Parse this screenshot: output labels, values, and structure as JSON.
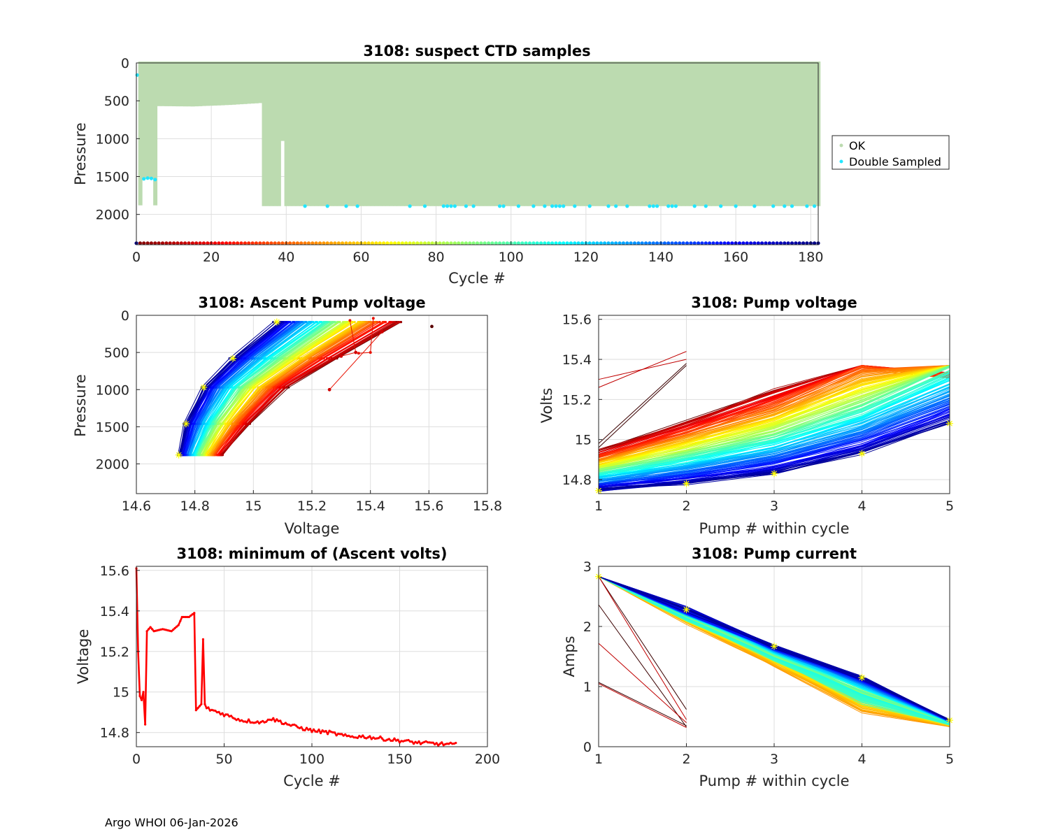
{
  "footer": "Argo WHOI 06-Jan-2026",
  "colors": {
    "ok": "#bcdbb0",
    "double": "#22e6ff",
    "min_line": "#ff0000",
    "marker": "#ffff00"
  },
  "chart_data": [
    {
      "id": "suspect_ctd",
      "type": "scatter",
      "title": "3108: suspect CTD samples",
      "xlabel": "Cycle #",
      "ylabel": "Pressure",
      "xlim": [
        0,
        182
      ],
      "ylim": [
        2400,
        0
      ],
      "xticks": [
        "0",
        "20",
        "40",
        "60",
        "80",
        "100",
        "120",
        "140",
        "160",
        "180"
      ],
      "xtick_values": [
        0,
        20,
        40,
        60,
        80,
        100,
        120,
        140,
        160,
        180
      ],
      "yticks": [
        "0",
        "500",
        "1000",
        "1500",
        "2000"
      ],
      "ytick_values": [
        0,
        500,
        1000,
        1500,
        2000
      ],
      "legend": [
        "OK",
        "Double Sampled"
      ],
      "ok_profile_max_pressure": [
        [
          1,
          1880
        ],
        [
          2,
          1530
        ],
        [
          3,
          1520
        ],
        [
          4,
          1530
        ],
        [
          5,
          1880
        ],
        [
          6,
          570
        ],
        [
          15,
          575
        ],
        [
          25,
          555
        ],
        [
          33,
          530
        ],
        [
          34,
          1890
        ],
        [
          38,
          1890
        ],
        [
          39,
          1030
        ],
        [
          40,
          1890
        ],
        [
          182,
          1890
        ]
      ],
      "double_sampled_points": [
        [
          0.2,
          160
        ],
        [
          2,
          1530
        ],
        [
          3,
          1520
        ],
        [
          4,
          1525
        ],
        [
          5,
          1540
        ],
        [
          45,
          1890
        ],
        [
          51,
          1890
        ],
        [
          56,
          1890
        ],
        [
          59,
          1890
        ],
        [
          73,
          1890
        ],
        [
          77,
          1890
        ],
        [
          82,
          1890
        ],
        [
          83,
          1890
        ],
        [
          84,
          1890
        ],
        [
          85,
          1890
        ],
        [
          88,
          1890
        ],
        [
          90,
          1890
        ],
        [
          97,
          1890
        ],
        [
          98,
          1890
        ],
        [
          102,
          1890
        ],
        [
          106,
          1890
        ],
        [
          109,
          1890
        ],
        [
          111,
          1890
        ],
        [
          112,
          1890
        ],
        [
          113,
          1890
        ],
        [
          114,
          1890
        ],
        [
          117,
          1890
        ],
        [
          121,
          1890
        ],
        [
          126,
          1890
        ],
        [
          128,
          1890
        ],
        [
          131,
          1890
        ],
        [
          137,
          1890
        ],
        [
          138,
          1890
        ],
        [
          139,
          1890
        ],
        [
          142,
          1890
        ],
        [
          143,
          1890
        ],
        [
          144,
          1890
        ],
        [
          149,
          1890
        ],
        [
          152,
          1890
        ],
        [
          156,
          1890
        ],
        [
          160,
          1890
        ],
        [
          165,
          1890
        ],
        [
          170,
          1890
        ],
        [
          173,
          1890
        ],
        [
          175,
          1890
        ],
        [
          179,
          1890
        ],
        [
          181,
          1890
        ]
      ],
      "cycle_color_row_pressure": 2380
    },
    {
      "id": "ascent_pump_voltage",
      "type": "line",
      "title": "3108: Ascent Pump voltage",
      "xlabel": "Voltage",
      "ylabel": "Pressure",
      "xlim": [
        14.6,
        15.8
      ],
      "ylim": [
        2400,
        0
      ],
      "xticks": [
        "14.6",
        "14.8",
        "15",
        "15.2",
        "15.4",
        "15.6",
        "15.8"
      ],
      "xtick_values": [
        14.6,
        14.8,
        15.0,
        15.2,
        15.4,
        15.6,
        15.8
      ],
      "yticks": [
        "0",
        "500",
        "1000",
        "1500",
        "2000"
      ],
      "ytick_values": [
        0,
        500,
        1000,
        1500,
        2000
      ],
      "reference_profile": [
        [
          14.745,
          1880
        ],
        [
          14.77,
          1460
        ],
        [
          14.83,
          970
        ],
        [
          14.93,
          580
        ],
        [
          15.08,
          90
        ]
      ],
      "outliers": [
        [
          15.61,
          150
        ],
        [
          15.44,
          220
        ],
        [
          15.26,
          1000
        ],
        [
          15.35,
          500
        ],
        [
          15.3,
          550
        ]
      ]
    },
    {
      "id": "pump_voltage",
      "type": "line",
      "title": "3108: Pump voltage",
      "xlabel": "Pump # within cycle",
      "ylabel": "Volts",
      "xlim": [
        1,
        5
      ],
      "ylim": [
        14.73,
        15.62
      ],
      "xticks": [
        "1",
        "2",
        "3",
        "4",
        "5"
      ],
      "xtick_values": [
        1,
        2,
        3,
        4,
        5
      ],
      "yticks": [
        "14.8",
        "15",
        "15.2",
        "15.4",
        "15.6"
      ],
      "ytick_values": [
        14.8,
        15.0,
        15.2,
        15.4,
        15.6
      ],
      "reference_profile": [
        [
          1,
          14.745
        ],
        [
          2,
          14.78
        ],
        [
          3,
          14.83
        ],
        [
          4,
          14.93
        ],
        [
          5,
          15.08
        ]
      ]
    },
    {
      "id": "min_ascent_volts",
      "type": "line",
      "title": "3108: minimum of (Ascent volts)",
      "xlabel": "Cycle #",
      "ylabel": "Voltage",
      "xlim": [
        0,
        200
      ],
      "ylim": [
        14.73,
        15.62
      ],
      "xticks": [
        "0",
        "50",
        "100",
        "150",
        "200"
      ],
      "xtick_values": [
        0,
        50,
        100,
        150,
        200
      ],
      "yticks": [
        "14.8",
        "15",
        "15.2",
        "15.4",
        "15.6"
      ],
      "ytick_values": [
        14.8,
        15.0,
        15.2,
        15.4,
        15.6
      ],
      "anchors": [
        [
          0,
          15.61
        ],
        [
          1,
          15.2
        ],
        [
          2,
          14.98
        ],
        [
          3,
          14.96
        ],
        [
          4,
          15.0
        ],
        [
          5,
          14.84
        ],
        [
          6,
          15.3
        ],
        [
          8,
          15.32
        ],
        [
          10,
          15.3
        ],
        [
          15,
          15.31
        ],
        [
          20,
          15.3
        ],
        [
          24,
          15.33
        ],
        [
          26,
          15.37
        ],
        [
          30,
          15.37
        ],
        [
          33,
          15.39
        ],
        [
          34,
          14.91
        ],
        [
          37,
          14.94
        ],
        [
          38,
          15.26
        ],
        [
          39,
          14.94
        ],
        [
          40,
          14.92
        ],
        [
          50,
          14.89
        ],
        [
          60,
          14.86
        ],
        [
          73,
          14.85
        ],
        [
          75,
          14.87
        ],
        [
          80,
          14.86
        ],
        [
          90,
          14.83
        ],
        [
          100,
          14.81
        ],
        [
          110,
          14.8
        ],
        [
          120,
          14.78
        ],
        [
          130,
          14.78
        ],
        [
          140,
          14.77
        ],
        [
          150,
          14.76
        ],
        [
          160,
          14.75
        ],
        [
          170,
          14.745
        ],
        [
          182,
          14.74
        ]
      ]
    },
    {
      "id": "pump_current",
      "type": "line",
      "title": "3108: Pump current",
      "xlabel": "Pump # within cycle",
      "ylabel": "Amps",
      "xlim": [
        1,
        5
      ],
      "ylim": [
        0,
        3
      ],
      "xticks": [
        "1",
        "2",
        "3",
        "4",
        "5"
      ],
      "xtick_values": [
        1,
        2,
        3,
        4,
        5
      ],
      "yticks": [
        "0",
        "1",
        "2",
        "3"
      ],
      "ytick_values": [
        0,
        1,
        2,
        3
      ],
      "reference_profile": [
        [
          1,
          2.83
        ],
        [
          2,
          2.28
        ],
        [
          3,
          1.67
        ],
        [
          4,
          1.15
        ],
        [
          5,
          0.44
        ]
      ]
    }
  ]
}
